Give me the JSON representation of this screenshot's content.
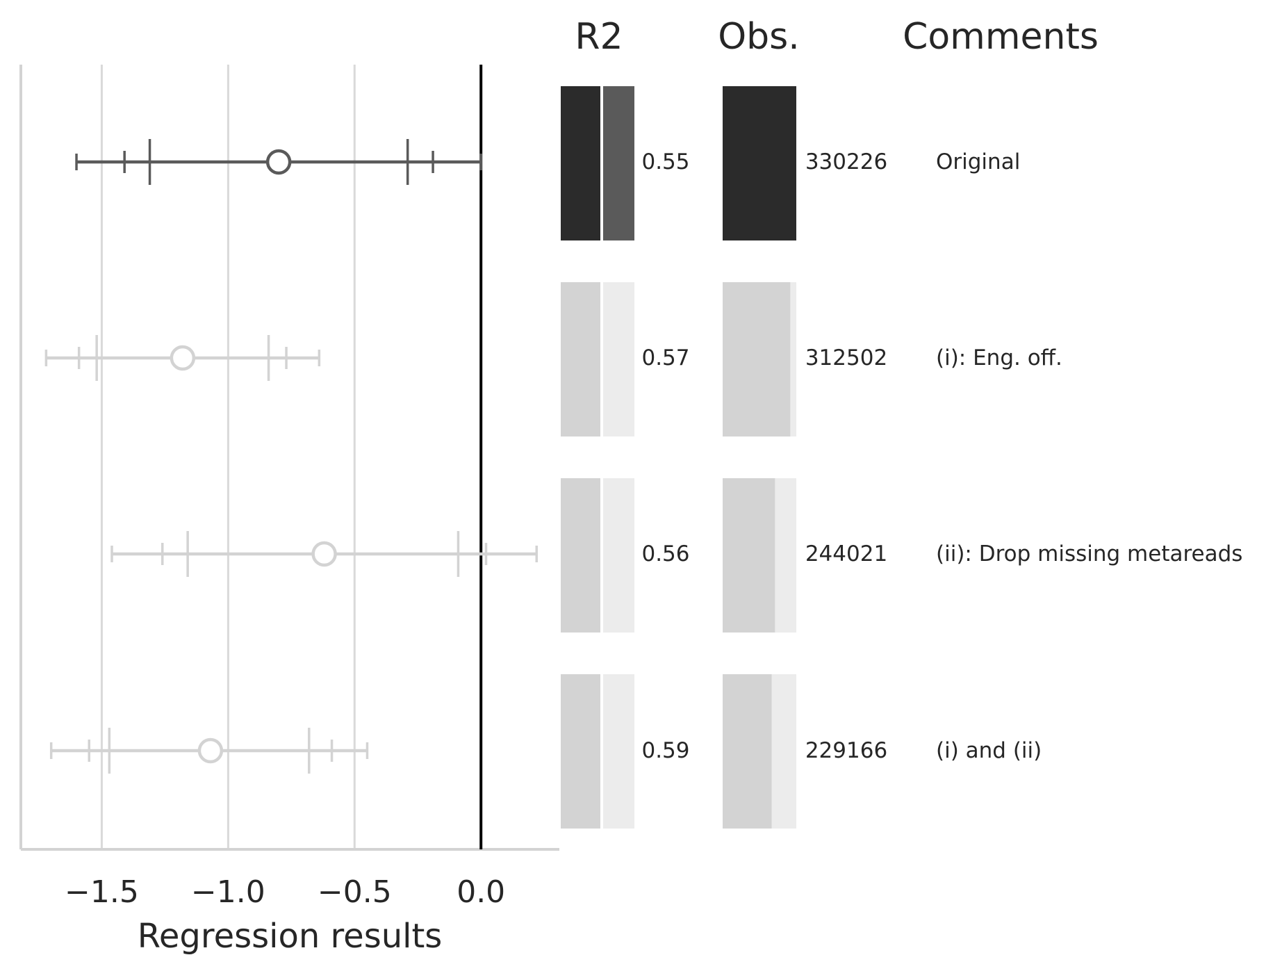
{
  "chart_data": {
    "type": "forest-plot",
    "xlabel": "Regression results",
    "xlim": [
      -1.82,
      0.31
    ],
    "xticks": [
      -1.5,
      -1.0,
      -0.5,
      0.0
    ],
    "xtick_labels": [
      "−1.5",
      "−1.0",
      "−0.5",
      "0.0"
    ],
    "reference_line": 0.0,
    "grid": true,
    "columns": {
      "r2": "R2",
      "obs": "Obs.",
      "comments": "Comments"
    },
    "obs_max": 330226,
    "rows": [
      {
        "estimate": -0.8,
        "ci_outer": [
          -1.6,
          0.0
        ],
        "ci_mid": [
          -1.41,
          -0.19
        ],
        "ci_inner": [
          -1.31,
          -0.29
        ],
        "r2_label": "0.55",
        "r2_secondary": 0.55,
        "obs": 330226,
        "obs_label": "330226",
        "comment": "Original",
        "highlight": true
      },
      {
        "estimate": -1.18,
        "ci_outer": [
          -1.72,
          -0.64
        ],
        "ci_mid": [
          -1.59,
          -0.77
        ],
        "ci_inner": [
          -1.52,
          -0.84
        ],
        "r2_label": "0.57",
        "r2_secondary": 0.57,
        "obs": 312502,
        "obs_label": "312502",
        "comment": "(i): Eng. off.",
        "highlight": false
      },
      {
        "estimate": -0.62,
        "ci_outer": [
          -1.46,
          0.22
        ],
        "ci_mid": [
          -1.26,
          0.02
        ],
        "ci_inner": [
          -1.16,
          -0.09
        ],
        "r2_label": "0.56",
        "r2_secondary": 0.56,
        "obs": 244021,
        "obs_label": "244021",
        "comment": "(ii): Drop missing metareads",
        "highlight": false
      },
      {
        "estimate": -1.07,
        "ci_outer": [
          -1.7,
          -0.45
        ],
        "ci_mid": [
          -1.55,
          -0.59
        ],
        "ci_inner": [
          -1.47,
          -0.68
        ],
        "r2_label": "0.59",
        "r2_secondary": 0.59,
        "obs": 229166,
        "obs_label": "229166",
        "comment": "(i) and (ii)",
        "highlight": false
      }
    ]
  },
  "colors": {
    "highlight_line": "#5a5a5a",
    "highlight_bar": "#2b2b2b",
    "muted_line": "#d3d3d3",
    "muted_bar": "#d3d3d3",
    "muted_bar_light": "#ececec",
    "grid": "#d9d9d9",
    "spine": "#d3d3d3",
    "zero_line": "#000000",
    "text": "#262626"
  }
}
